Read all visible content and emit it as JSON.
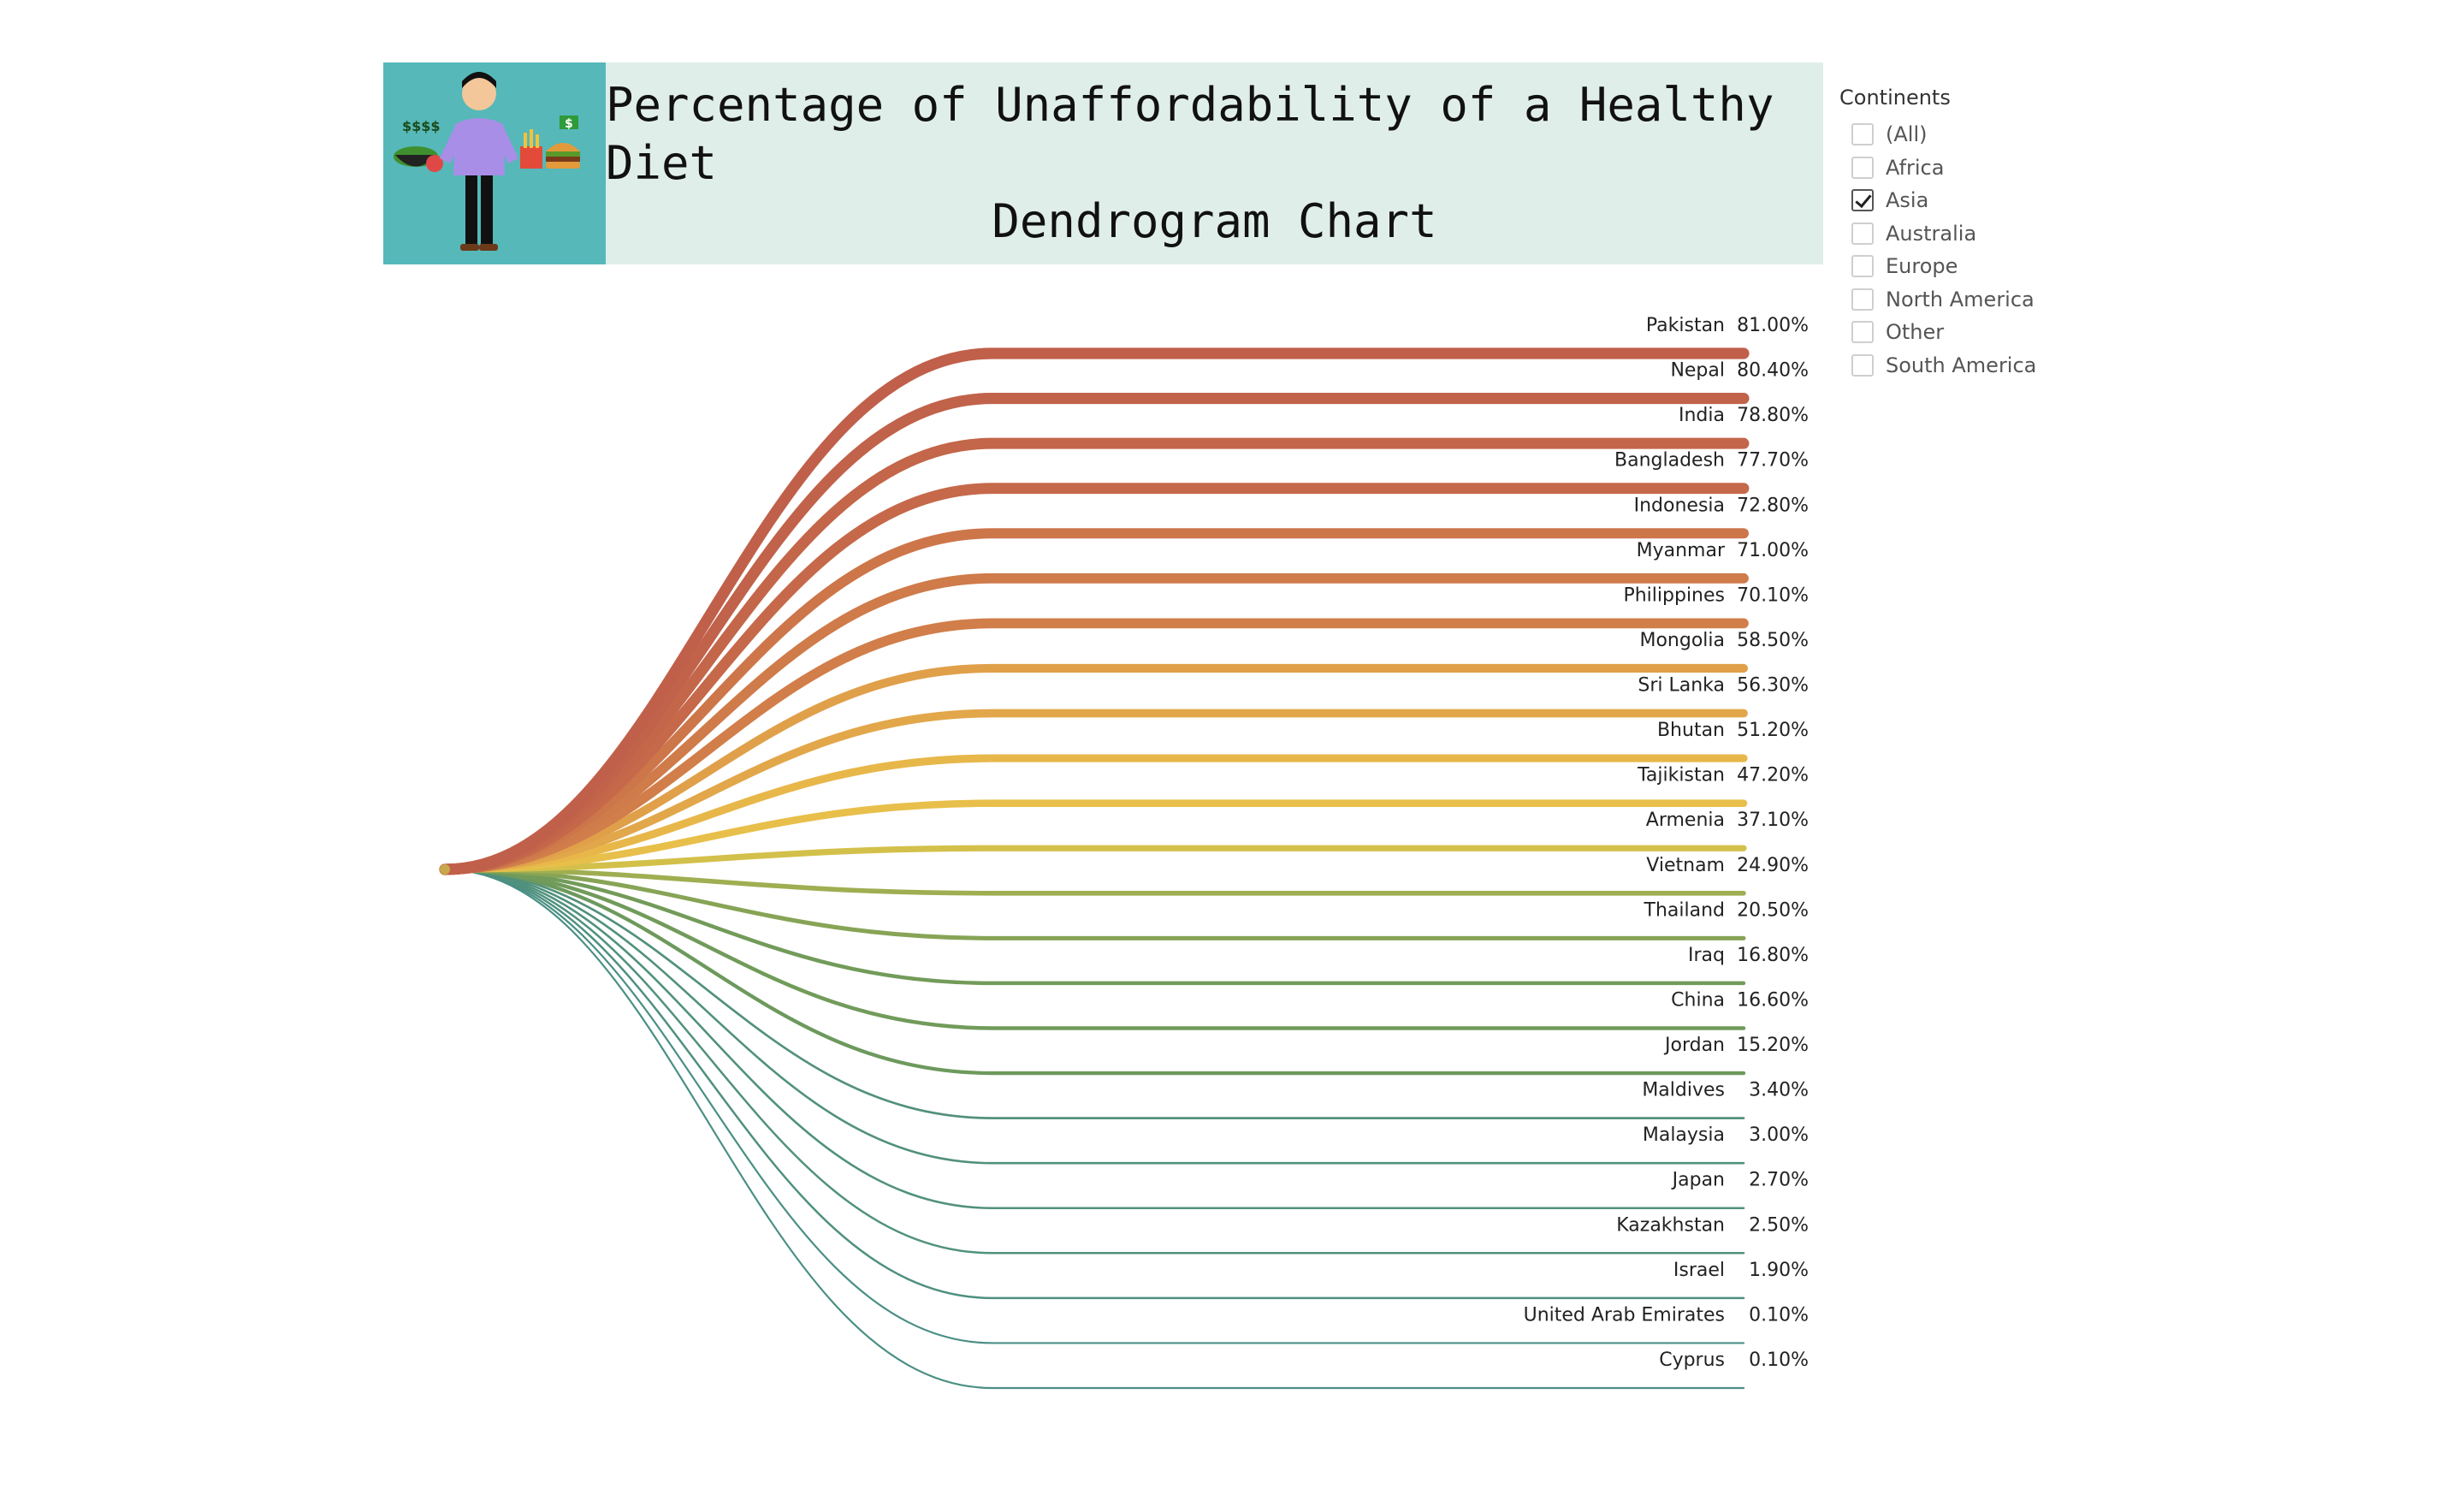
{
  "header": {
    "title_line1": "Percentage of Unaffordability of a Healthy Diet",
    "title_line2": "Dendrogram Chart",
    "logo_icon": "person-with-food-and-money-icon",
    "logo_text_left": "$$$$",
    "logo_text_right": "$"
  },
  "filter": {
    "title": "Continents",
    "options": [
      {
        "label": "(All)",
        "checked": false
      },
      {
        "label": "Africa",
        "checked": false
      },
      {
        "label": "Asia",
        "checked": true
      },
      {
        "label": "Australia",
        "checked": false
      },
      {
        "label": "Europe",
        "checked": false
      },
      {
        "label": "North America",
        "checked": false
      },
      {
        "label": "Other",
        "checked": false
      },
      {
        "label": "South America",
        "checked": false
      }
    ]
  },
  "chart_data": {
    "type": "dendrogram",
    "title": "Percentage of Unaffordability of a Healthy Diet Dendrogram Chart",
    "categories": [
      "Pakistan",
      "Nepal",
      "India",
      "Bangladesh",
      "Indonesia",
      "Myanmar",
      "Philippines",
      "Mongolia",
      "Sri Lanka",
      "Bhutan",
      "Tajikistan",
      "Armenia",
      "Vietnam",
      "Thailand",
      "Iraq",
      "China",
      "Jordan",
      "Maldives",
      "Malaysia",
      "Japan",
      "Kazakhstan",
      "Israel",
      "United Arab Emirates",
      "Cyprus"
    ],
    "values": [
      81.0,
      80.4,
      78.8,
      77.7,
      72.8,
      71.0,
      70.1,
      58.5,
      56.3,
      51.2,
      47.2,
      37.1,
      24.9,
      20.5,
      16.8,
      16.6,
      15.2,
      3.4,
      3.0,
      2.7,
      2.5,
      1.9,
      0.1,
      0.1
    ],
    "value_labels": [
      "81.00%",
      "80.40%",
      "78.80%",
      "77.70%",
      "72.80%",
      "71.00%",
      "70.10%",
      "58.50%",
      "56.30%",
      "51.20%",
      "47.20%",
      "37.10%",
      "24.90%",
      "20.50%",
      "16.80%",
      "16.60%",
      "15.20%",
      "3.40%",
      "3.00%",
      "2.70%",
      "2.50%",
      "1.90%",
      "0.10%",
      "0.10%"
    ],
    "color_scale": [
      "#4a8f84",
      "#6f9a5a",
      "#c9c04a",
      "#ebbf4a",
      "#d98c4a",
      "#c0604a"
    ],
    "legend": "none"
  }
}
